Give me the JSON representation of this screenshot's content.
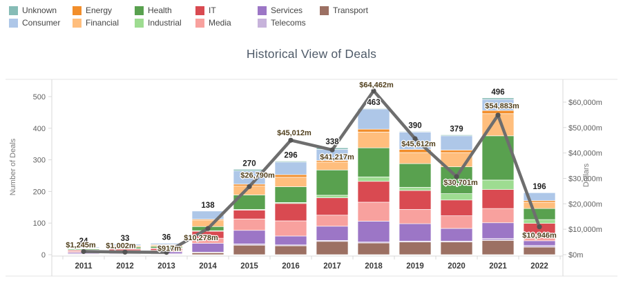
{
  "header": {
    "title": "Historical View of Deals"
  },
  "legend": {
    "items": [
      {
        "label": "Unknown",
        "color": "#86BCB6"
      },
      {
        "label": "Energy",
        "color": "#F28E2B"
      },
      {
        "label": "Health",
        "color": "#59A14F"
      },
      {
        "label": "IT",
        "color": "#D94A51"
      },
      {
        "label": "Services",
        "color": "#9C76C6"
      },
      {
        "label": "Transport",
        "color": "#9C7063"
      },
      {
        "label": "Consumer",
        "color": "#AEC7E8"
      },
      {
        "label": "Financial",
        "color": "#FFBE7D"
      },
      {
        "label": "Industrial",
        "color": "#9EDC91"
      },
      {
        "label": "Media",
        "color": "#F8A19E"
      },
      {
        "label": "Telecoms",
        "color": "#C7B3DB"
      }
    ]
  },
  "chart_data": {
    "type": "stacked-bar+line",
    "title": "Historical View of Deals",
    "categories": [
      "2011",
      "2012",
      "2013",
      "2014",
      "2015",
      "2016",
      "2017",
      "2018",
      "2019",
      "2020",
      "2021",
      "2022"
    ],
    "bar_totals": [
      24,
      33,
      36,
      138,
      270,
      296,
      338,
      463,
      390,
      379,
      496,
      196
    ],
    "bar_total_labels": [
      "24",
      "33",
      "36",
      "138",
      "270",
      "296",
      "338",
      "463",
      "390",
      "379",
      "496",
      "196"
    ],
    "series": [
      {
        "name": "Transport",
        "color": "#9C7063",
        "values": [
          2,
          2,
          2,
          6,
          30,
          28,
          42,
          37,
          40,
          40,
          45,
          24
        ]
      },
      {
        "name": "Telecoms",
        "color": "#C7B3DB",
        "values": [
          1,
          1,
          1,
          2,
          4,
          3,
          3,
          3,
          3,
          3,
          6,
          5
        ]
      },
      {
        "name": "Services",
        "color": "#9C76C6",
        "values": [
          4,
          6,
          6,
          28,
          43,
          28,
          45,
          66,
          55,
          40,
          50,
          15
        ]
      },
      {
        "name": "Media",
        "color": "#F8A19E",
        "values": [
          3,
          4,
          5,
          16,
          36,
          48,
          35,
          60,
          45,
          40,
          45,
          20
        ]
      },
      {
        "name": "IT",
        "color": "#D94A51",
        "values": [
          4,
          5,
          6,
          22,
          28,
          55,
          55,
          66,
          60,
          50,
          60,
          35
        ]
      },
      {
        "name": "Industrial",
        "color": "#9EDC91",
        "values": [
          1,
          1,
          1,
          2,
          2,
          3,
          8,
          14,
          10,
          20,
          30,
          12
        ]
      },
      {
        "name": "Health",
        "color": "#59A14F",
        "values": [
          3,
          5,
          5,
          13,
          46,
          50,
          80,
          92,
          75,
          85,
          140,
          35
        ]
      },
      {
        "name": "Financial",
        "color": "#FFBE7D",
        "values": [
          2,
          3,
          4,
          20,
          28,
          30,
          25,
          50,
          35,
          45,
          70,
          20
        ]
      },
      {
        "name": "Energy",
        "color": "#F28E2B",
        "values": [
          1,
          2,
          2,
          3,
          6,
          8,
          5,
          9,
          10,
          8,
          10,
          5
        ]
      },
      {
        "name": "Consumer",
        "color": "#AEC7E8",
        "values": [
          3,
          4,
          4,
          26,
          42,
          40,
          35,
          64,
          55,
          45,
          35,
          25
        ]
      },
      {
        "name": "Unknown",
        "color": "#86BCB6",
        "values": [
          0,
          0,
          0,
          0,
          5,
          3,
          5,
          2,
          2,
          3,
          5,
          0
        ]
      }
    ],
    "line": {
      "name": "Dollars",
      "color": "#6E6E6E",
      "values": [
        1245,
        1002,
        917,
        10278,
        26790,
        45012,
        41217,
        64462,
        45612,
        30701,
        54883,
        10946
      ],
      "labels": [
        "$1,245m",
        "$1,002m",
        "$917m",
        "$10,278m",
        "$26,790m",
        "$45,012m",
        "$41,217m",
        "$64,462m",
        "$45,612m",
        "$30,701m",
        "$54,883m",
        "$10,946m"
      ],
      "label_color": "#503F1C"
    },
    "left_axis": {
      "label": "Number of Deals",
      "ticks": [
        "0",
        "100",
        "200",
        "300",
        "400",
        "500"
      ],
      "range": [
        0,
        500
      ]
    },
    "right_axis": {
      "label": "Dollars",
      "ticks": [
        "$0m",
        "$10,000m",
        "$20,000m",
        "$30,000m",
        "$40,000m",
        "$50,000m",
        "$60,000m"
      ],
      "range": [
        0,
        60000
      ]
    },
    "grid": false,
    "legend_position": "top-left"
  }
}
